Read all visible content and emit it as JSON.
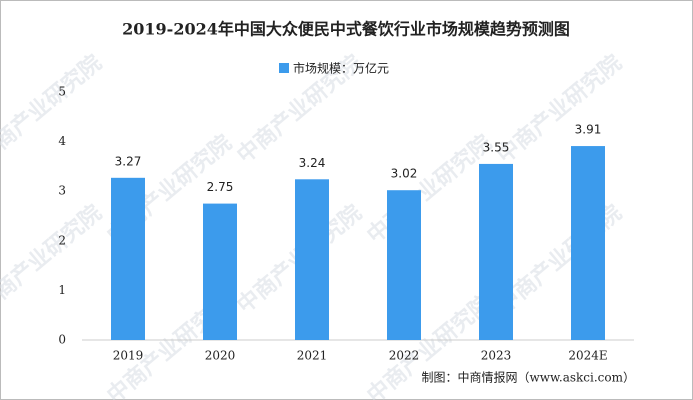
{
  "chart_data": {
    "type": "bar",
    "title": "2019-2024年中国大众便民中式餐饮行业市场规模趋势预测图",
    "watermark": "中商产业研究院",
    "series": [
      {
        "name": "市场规模：万亿元",
        "color": "#3c9bec",
        "values": [
          3.27,
          2.75,
          3.24,
          3.02,
          3.55,
          3.91
        ]
      }
    ],
    "categories": [
      "2019",
      "2020",
      "2021",
      "2022",
      "2023",
      "2024E"
    ],
    "ylim": [
      0,
      5
    ],
    "yticks": [
      0,
      1,
      2,
      3,
      4,
      5
    ],
    "source": "制图：中商情报网（www.askci.com）"
  }
}
